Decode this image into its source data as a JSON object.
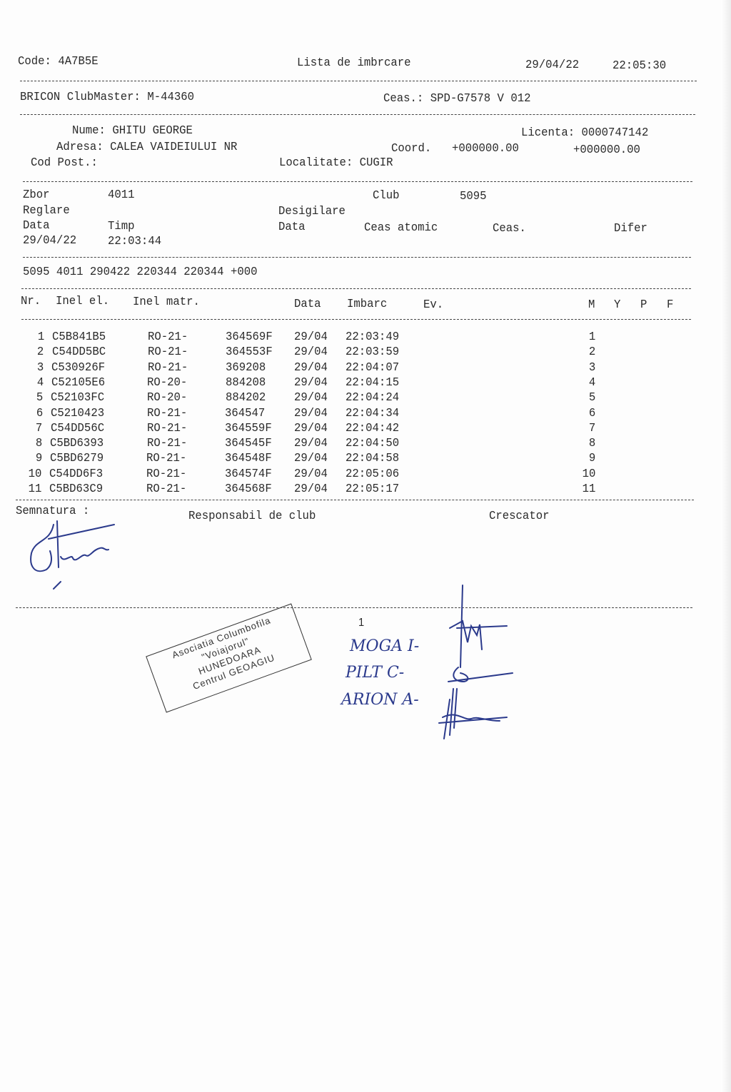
{
  "header": {
    "code": "Code: 4A7B5E",
    "title": "Lista de imbrcare",
    "date": "29/04/22",
    "time": "22:05:30"
  },
  "device": {
    "clubmaster": "BRICON ClubMaster: M-44360",
    "clock": "Ceas.: SPD-G7578 V 012"
  },
  "owner": {
    "name": "Nume: GHITU GEORGE",
    "license": "Licenta: 0000747142",
    "address": "Adresa: CALEA VAIDEIULUI NR",
    "coord_label": "Coord.",
    "coord_1": "+000000.00",
    "coord_2": "+000000.00",
    "postal": "Cod Post.:",
    "locality": "Localitate: CUGIR"
  },
  "flight": {
    "zbor_label": "Zbor",
    "zbor": "4011",
    "club_label": "Club",
    "club": "5095",
    "reglare": "Reglare",
    "desigilare": "Desigilare",
    "data_label": "Data",
    "timp_label": "Timp",
    "data2_label": "Data",
    "ceas_atomic": "Ceas atomic",
    "ceas": "Ceas.",
    "difer": "Difer",
    "reg_date": "29/04/22",
    "reg_time": "22:03:44"
  },
  "summary_line": "5095 4011 290422 220344 220344 +000",
  "table": {
    "headers": {
      "nr": "Nr.",
      "inel_el": "Inel el.",
      "inel_matr": "Inel matr.",
      "data": "Data",
      "imbarc": "Imbarc",
      "ev": "Ev.",
      "m": "M",
      "y": "Y",
      "p": "P",
      "f": "F"
    },
    "rows": [
      {
        "nr": "1",
        "el": "C5B841B5",
        "prefix": "RO-21-",
        "matr": "364569F",
        "date": "29/04",
        "time": "22:03:49",
        "m": "1"
      },
      {
        "nr": "2",
        "el": "C54DD5BC",
        "prefix": "RO-21-",
        "matr": "364553F",
        "date": "29/04",
        "time": "22:03:59",
        "m": "2"
      },
      {
        "nr": "3",
        "el": "C530926F",
        "prefix": "RO-21-",
        "matr": "369208",
        "date": "29/04",
        "time": "22:04:07",
        "m": "3"
      },
      {
        "nr": "4",
        "el": "C52105E6",
        "prefix": "RO-20-",
        "matr": "884208",
        "date": "29/04",
        "time": "22:04:15",
        "m": "4"
      },
      {
        "nr": "5",
        "el": "C52103FC",
        "prefix": "RO-20-",
        "matr": "884202",
        "date": "29/04",
        "time": "22:04:24",
        "m": "5"
      },
      {
        "nr": "6",
        "el": "C5210423",
        "prefix": "RO-21-",
        "matr": "364547",
        "date": "29/04",
        "time": "22:04:34",
        "m": "6"
      },
      {
        "nr": "7",
        "el": "C54DD56C",
        "prefix": "RO-21-",
        "matr": "364559F",
        "date": "29/04",
        "time": "22:04:42",
        "m": "7"
      },
      {
        "nr": "8",
        "el": "C5BD6393",
        "prefix": "RO-21-",
        "matr": "364545F",
        "date": "29/04",
        "time": "22:04:50",
        "m": "8"
      },
      {
        "nr": "9",
        "el": "C5BD6279",
        "prefix": "RO-21-",
        "matr": "364548F",
        "date": "29/04",
        "time": "22:04:58",
        "m": "9"
      },
      {
        "nr": "10",
        "el": "C54DD6F3",
        "prefix": "RO-21-",
        "matr": "364574F",
        "date": "29/04",
        "time": "22:05:06",
        "m": "10"
      },
      {
        "nr": "11",
        "el": "C5BD63C9",
        "prefix": "RO-21-",
        "matr": "364568F",
        "date": "29/04",
        "time": "22:05:17",
        "m": "11"
      }
    ]
  },
  "footer": {
    "semnatura": "Semnatura :",
    "responsabil": "Responsabil de club",
    "crescator": "Crescator",
    "page": "1"
  },
  "stamp": {
    "line1": "Asociatia Columbofila",
    "line2": "\"Voiajorul\"",
    "line3": "HUNEDOARA",
    "line4": "Centrul GEOAGIU"
  },
  "handwritten": {
    "name1": "MOGA I-",
    "name2": "PILT C-",
    "name3": "ARION A-"
  },
  "colors": {
    "ink": "#2a2a2a",
    "pen": "#2b3a8c"
  }
}
